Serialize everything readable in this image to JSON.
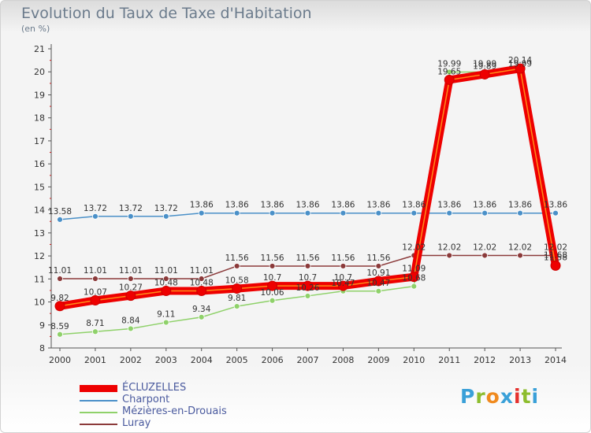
{
  "header": {
    "title": "Evolution du Taux de Taxe d'Habitation",
    "unit": "(en %)"
  },
  "brand": {
    "letters": [
      "P",
      "r",
      "o",
      "x",
      "i",
      "t",
      "i"
    ],
    "colors": [
      "#3aa0d8",
      "#8dbd2e",
      "#f08a1e",
      "#3aa0d8",
      "#e5312e",
      "#8dbd2e",
      "#3aa0d8"
    ]
  },
  "chart_data": {
    "type": "line",
    "title": "Evolution du Taux de Taxe d'Habitation",
    "ylabel": "(en %)",
    "x": [
      2000,
      2001,
      2002,
      2003,
      2004,
      2005,
      2006,
      2007,
      2008,
      2009,
      2010,
      2011,
      2012,
      2013,
      2014
    ],
    "ylim": [
      8,
      21
    ],
    "yticks": [
      8,
      9,
      10,
      11,
      12,
      13,
      14,
      15,
      16,
      17,
      18,
      19,
      20,
      21
    ],
    "grid": false,
    "legend_position": "bottom-left",
    "series": [
      {
        "name": "ÉCLUZELLES",
        "color": "#ee0000",
        "values": [
          9.82,
          10.07,
          10.27,
          10.48,
          10.48,
          10.58,
          10.7,
          10.7,
          10.7,
          10.91,
          11.09,
          19.65,
          19.89,
          20.14,
          11.58
        ],
        "labels": [
          "9.82",
          "10.07",
          "10.27",
          "10.48",
          "10.48",
          "10.58",
          "10.7",
          "10.7",
          "10.7",
          "10.91",
          "11.09",
          "19.65",
          "19.89",
          "20.14",
          "11.58"
        ]
      },
      {
        "name": "Charpont",
        "color": "#4a90c8",
        "values": [
          13.58,
          13.72,
          13.72,
          13.72,
          13.86,
          13.86,
          13.86,
          13.86,
          13.86,
          13.86,
          13.86,
          13.86,
          13.86,
          13.86,
          13.86
        ],
        "labels": [
          "13.58",
          "13.72",
          "13.72",
          "13.72",
          "13.86",
          "13.86",
          "13.86",
          "13.86",
          "13.86",
          "13.86",
          "13.86",
          "13.86",
          "13.86",
          "13.86",
          "13.86"
        ]
      },
      {
        "name": "Mézières-en-Drouais",
        "color": "#8fd16a",
        "values": [
          8.59,
          8.71,
          8.84,
          9.11,
          9.34,
          9.81,
          10.06,
          10.26,
          10.47,
          10.47,
          10.68,
          19.99,
          19.99,
          19.99,
          11.68
        ],
        "labels": [
          "8.59",
          "8.71",
          "8.84",
          "9.11",
          "9.34",
          "9.81",
          "10.06",
          "10.26",
          "10.47",
          "10.47",
          "10.68",
          "19.99",
          "19.99",
          "19.99",
          "11.68"
        ]
      },
      {
        "name": "Luray",
        "color": "#8b3a3a",
        "values": [
          11.01,
          11.01,
          11.01,
          11.01,
          11.01,
          11.56,
          11.56,
          11.56,
          11.56,
          11.56,
          12.02,
          12.02,
          12.02,
          12.02,
          12.02
        ],
        "labels": [
          "11.01",
          "11.01",
          "11.01",
          "11.01",
          "11.01",
          "11.56",
          "11.56",
          "11.56",
          "11.56",
          "11.56",
          "12.02",
          "12.02",
          "12.02",
          "12.02",
          "12.02"
        ]
      }
    ]
  }
}
